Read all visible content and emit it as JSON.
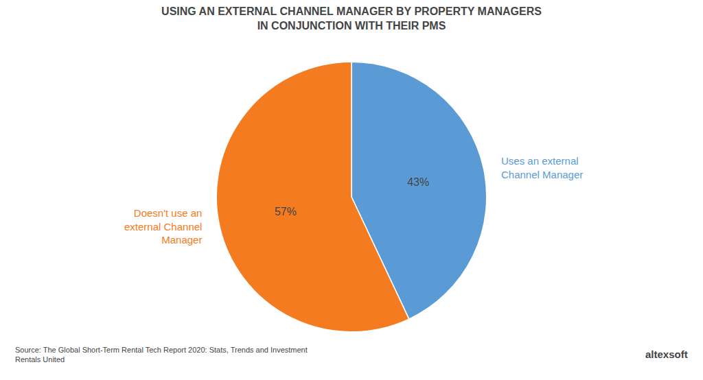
{
  "chart_data": {
    "type": "pie",
    "title": "USING AN EXTERNAL CHANNEL MANAGER BY PROPERTY MANAGERS\nIN CONJUNCTION WITH THEIR PMS",
    "categories": [
      "Uses an external\nChannel Manager",
      "Doesn't use an\nexternal Channel\nManager"
    ],
    "values": [
      43,
      57
    ],
    "value_labels": [
      "43%",
      "57%"
    ],
    "colors": [
      "#5B9BD5",
      "#F47B20"
    ],
    "data_labels": true,
    "annotations": [
      "Source: The Global Short-Term Rental Tech Report 2020: Stats, Trends and Investment\nRentals United",
      "altexsoft"
    ]
  }
}
